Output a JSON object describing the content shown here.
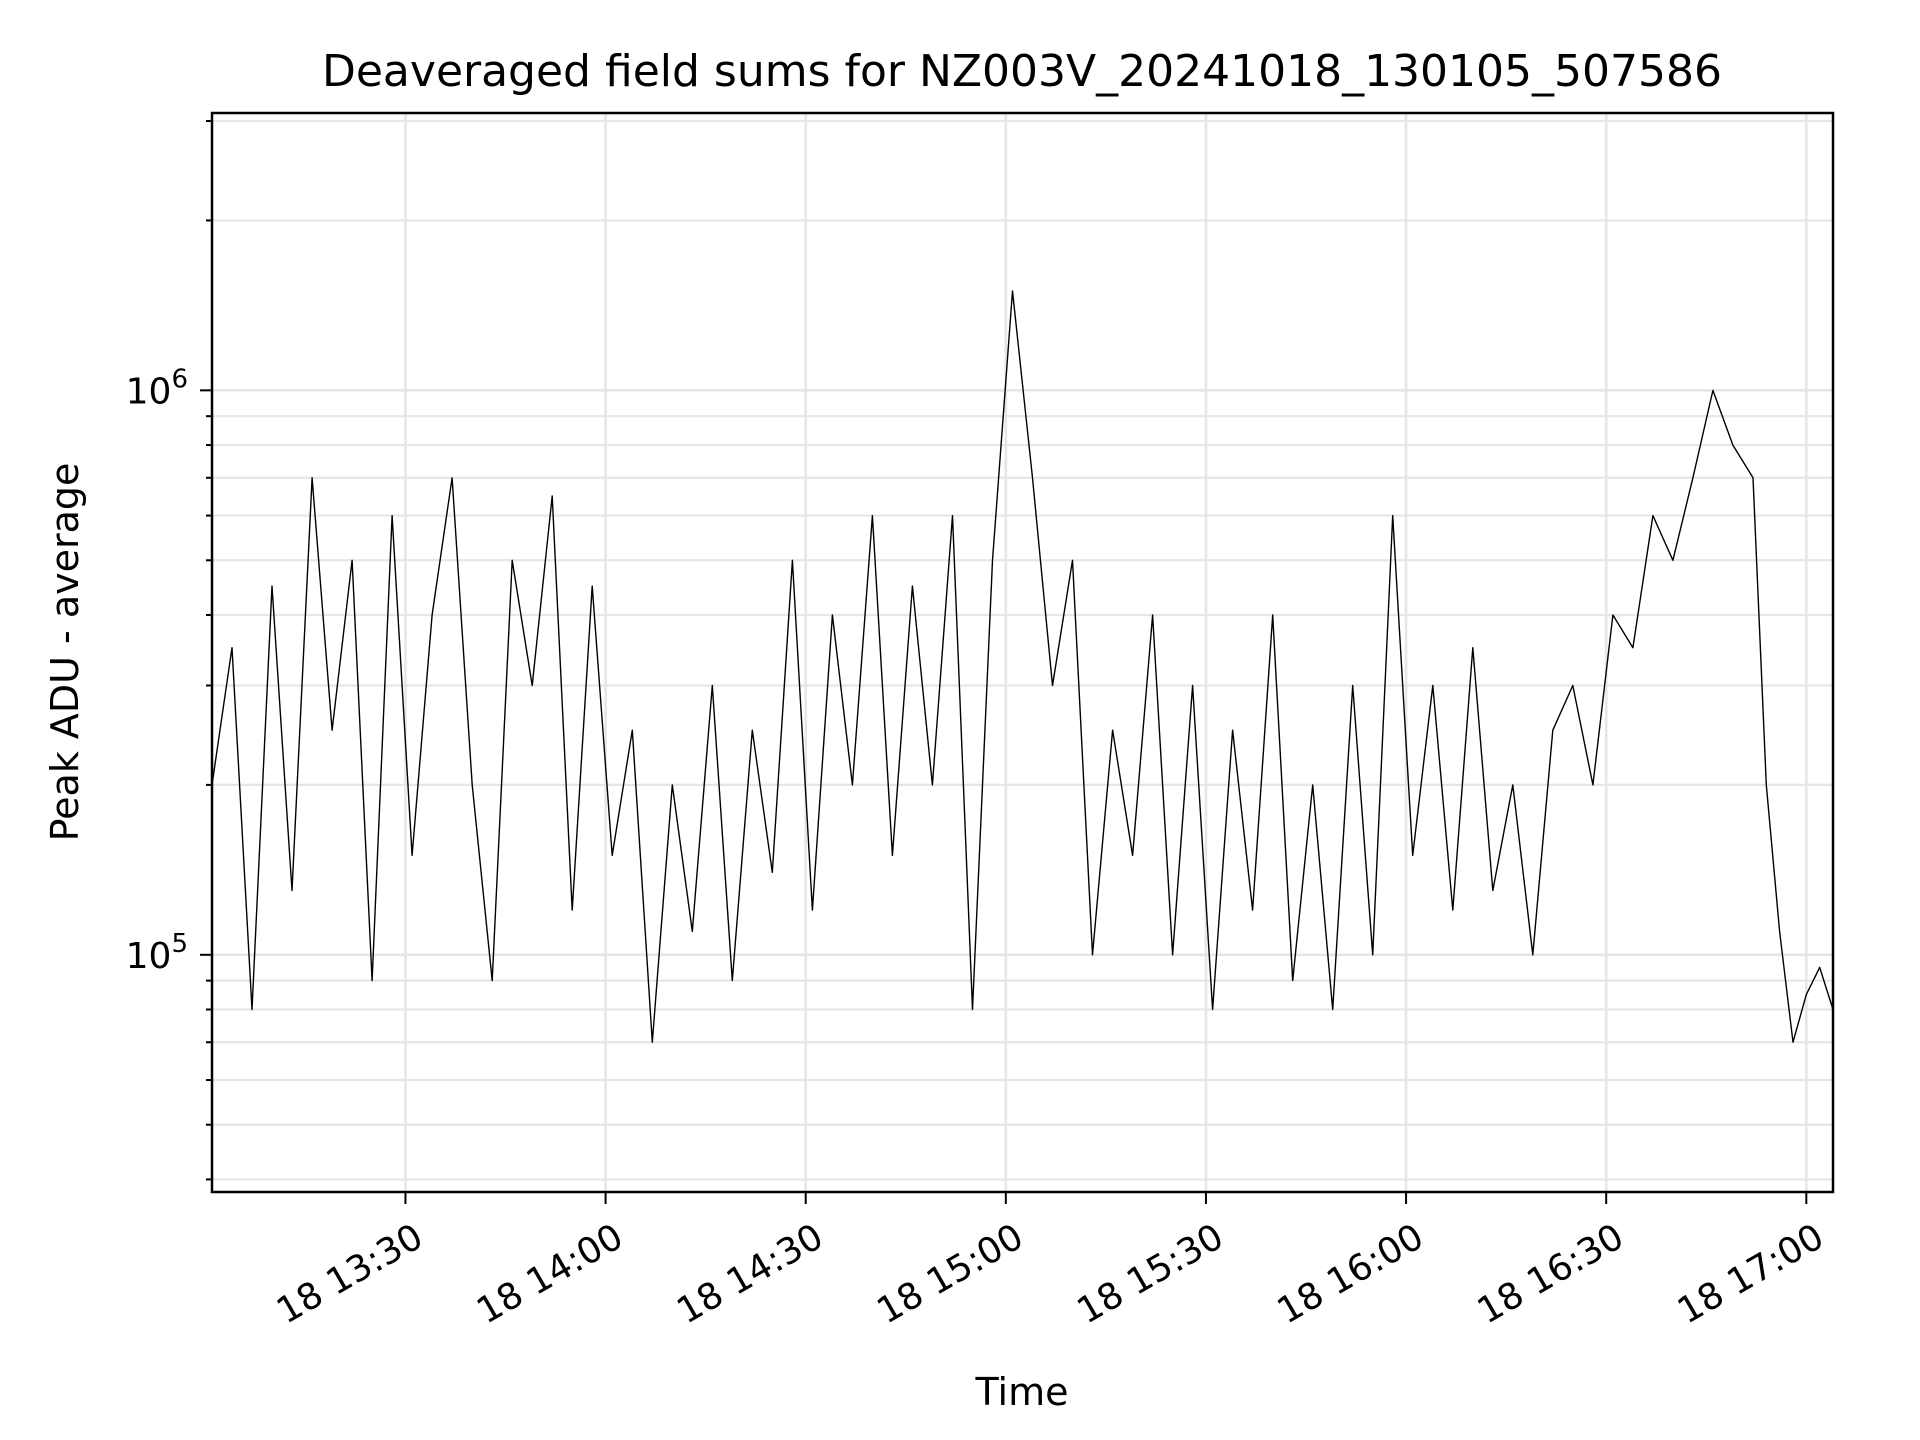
{
  "chart_data": {
    "type": "line",
    "title": "Deaveraged field sums for NZ003V_20241018_130105_507586",
    "xlabel": "Time",
    "ylabel": "Peak ADU - average",
    "x_axis": {
      "type": "time",
      "start": "18 13:01",
      "end": "18 17:04",
      "ticks": [
        "18 13:30",
        "18 14:00",
        "18 14:30",
        "18 15:00",
        "18 15:30",
        "18 16:00",
        "18 16:30",
        "18 17:00"
      ]
    },
    "y_axis": {
      "scale": "log",
      "range": [
        38000,
        3100000
      ],
      "ticks": [
        {
          "value": 100000,
          "mantissa": "10",
          "exp": "5"
        },
        {
          "value": 1000000,
          "mantissa": "10",
          "exp": "6"
        }
      ]
    },
    "grid": true,
    "line_color": "#000000",
    "series": [
      {
        "points": [
          [
            "13:01",
            200000
          ],
          [
            "13:04",
            350000
          ],
          [
            "13:07",
            80000
          ],
          [
            "13:10",
            450000
          ],
          [
            "13:13",
            130000
          ],
          [
            "13:16",
            700000
          ],
          [
            "13:19",
            250000
          ],
          [
            "13:22",
            500000
          ],
          [
            "13:25",
            90000
          ],
          [
            "13:28",
            600000
          ],
          [
            "13:31",
            150000
          ],
          [
            "13:34",
            400000
          ],
          [
            "13:37",
            700000
          ],
          [
            "13:40",
            200000
          ],
          [
            "13:43",
            90000
          ],
          [
            "13:46",
            500000
          ],
          [
            "13:49",
            300000
          ],
          [
            "13:52",
            650000
          ],
          [
            "13:55",
            120000
          ],
          [
            "13:58",
            450000
          ],
          [
            "14:01",
            150000
          ],
          [
            "14:04",
            250000
          ],
          [
            "14:07",
            70000
          ],
          [
            "14:10",
            200000
          ],
          [
            "14:13",
            110000
          ],
          [
            "14:16",
            300000
          ],
          [
            "14:19",
            90000
          ],
          [
            "14:22",
            250000
          ],
          [
            "14:25",
            140000
          ],
          [
            "14:28",
            500000
          ],
          [
            "14:31",
            120000
          ],
          [
            "14:34",
            400000
          ],
          [
            "14:37",
            200000
          ],
          [
            "14:40",
            600000
          ],
          [
            "14:43",
            150000
          ],
          [
            "14:46",
            450000
          ],
          [
            "14:49",
            200000
          ],
          [
            "14:52",
            600000
          ],
          [
            "14:55",
            80000
          ],
          [
            "14:58",
            500000
          ],
          [
            "15:01",
            1500000
          ],
          [
            "15:04",
            700000
          ],
          [
            "15:07",
            300000
          ],
          [
            "15:10",
            500000
          ],
          [
            "15:13",
            100000
          ],
          [
            "15:16",
            250000
          ],
          [
            "15:19",
            150000
          ],
          [
            "15:22",
            400000
          ],
          [
            "15:25",
            100000
          ],
          [
            "15:28",
            300000
          ],
          [
            "15:31",
            80000
          ],
          [
            "15:34",
            250000
          ],
          [
            "15:37",
            120000
          ],
          [
            "15:40",
            400000
          ],
          [
            "15:43",
            90000
          ],
          [
            "15:46",
            200000
          ],
          [
            "15:49",
            80000
          ],
          [
            "15:52",
            300000
          ],
          [
            "15:55",
            100000
          ],
          [
            "15:58",
            600000
          ],
          [
            "16:01",
            150000
          ],
          [
            "16:04",
            300000
          ],
          [
            "16:07",
            120000
          ],
          [
            "16:10",
            350000
          ],
          [
            "16:13",
            130000
          ],
          [
            "16:16",
            200000
          ],
          [
            "16:19",
            100000
          ],
          [
            "16:22",
            250000
          ],
          [
            "16:25",
            300000
          ],
          [
            "16:28",
            200000
          ],
          [
            "16:31",
            400000
          ],
          [
            "16:34",
            350000
          ],
          [
            "16:37",
            600000
          ],
          [
            "16:40",
            500000
          ],
          [
            "16:43",
            700000
          ],
          [
            "16:46",
            1000000
          ],
          [
            "16:49",
            800000
          ],
          [
            "16:52",
            700000
          ],
          [
            "16:54",
            200000
          ],
          [
            "16:56",
            110000
          ],
          [
            "16:58",
            70000
          ],
          [
            "17:00",
            85000
          ],
          [
            "17:02",
            95000
          ],
          [
            "17:04",
            80000
          ]
        ]
      }
    ]
  }
}
